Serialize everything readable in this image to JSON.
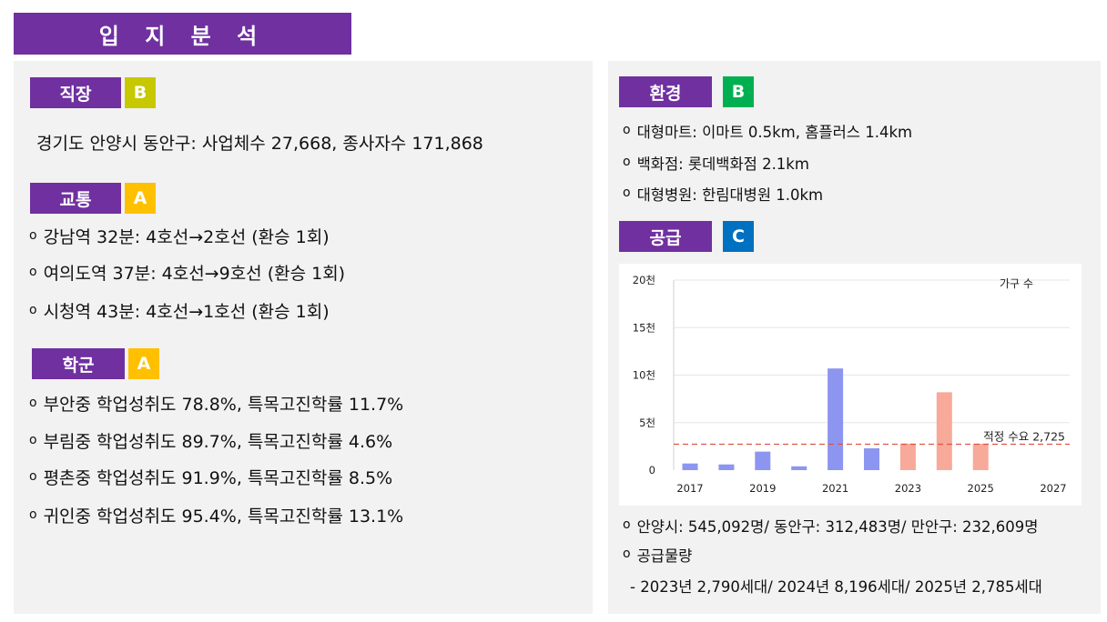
{
  "title": "입 지 분 석",
  "left": {
    "work": {
      "label": "직장",
      "grade": "B",
      "grade_color": "#c8c800",
      "text": "경기도 안양시 동안구: 사업체수 27,668, 종사자수 171,868"
    },
    "traffic": {
      "label": "교통",
      "grade": "A",
      "grade_color": "#ffc000",
      "items": [
        "강남역 32분: 4호선→2호선 (환승 1회)",
        "여의도역 37분: 4호선→9호선 (환승 1회)",
        "시청역 43분: 4호선→1호선 (환승 1회)"
      ]
    },
    "school": {
      "label": "학군",
      "grade": "A",
      "grade_color": "#ffc000",
      "items": [
        "부안중 학업성취도 78.8%, 특목고진학률 11.7%",
        "부림중 학업성취도 89.7%, 특목고진학률 4.6%",
        "평촌중 학업성취도 91.9%, 특목고진학률 8.5%",
        "귀인중 학업성취도 95.4%, 특목고진학률 13.1%"
      ]
    }
  },
  "right": {
    "env": {
      "label": "환경",
      "grade": "B",
      "grade_color": "#00b050",
      "items": [
        "대형마트: 이마트 0.5km, 홈플러스 1.4km",
        "백화점: 롯데백화점 2.1km",
        "대형병원: 한림대병원 1.0km"
      ]
    },
    "supply": {
      "label": "공급",
      "grade": "C",
      "grade_color": "#0070c0",
      "items": [
        "안양시: 545,092명/ 동안구: 312,483명/ 만안구: 232,609명",
        "공급물량"
      ],
      "detail": "- 2023년 2,790세대/ 2024년 8,196세대/ 2025년 2,785세대"
    }
  },
  "bullet_symbol": "o",
  "chart_data": {
    "type": "bar",
    "legend_label": "가구 수",
    "y_ticks": [
      "0",
      "5천",
      "10천",
      "15천",
      "20천"
    ],
    "x_ticks": [
      "2017",
      "2019",
      "2021",
      "2023",
      "2025",
      "2027"
    ],
    "ylim": [
      0,
      20000
    ],
    "xlim": [
      2017,
      2027
    ],
    "bars": [
      {
        "year": 2017,
        "value": 700,
        "color": "#8c96f0"
      },
      {
        "year": 2018,
        "value": 600,
        "color": "#8c96f0"
      },
      {
        "year": 2019,
        "value": 1950,
        "color": "#8c96f0"
      },
      {
        "year": 2020,
        "value": 400,
        "color": "#8c96f0"
      },
      {
        "year": 2021,
        "value": 10700,
        "color": "#8c96f0"
      },
      {
        "year": 2022,
        "value": 2300,
        "color": "#8c96f0"
      },
      {
        "year": 2023,
        "value": 2790,
        "color": "#f7a99a"
      },
      {
        "year": 2024,
        "value": 8196,
        "color": "#f7a99a"
      },
      {
        "year": 2025,
        "value": 2785,
        "color": "#f7a99a"
      }
    ],
    "reference_line": {
      "value": 2725,
      "label": "적정 수요 2,725",
      "color": "#e05545"
    }
  }
}
